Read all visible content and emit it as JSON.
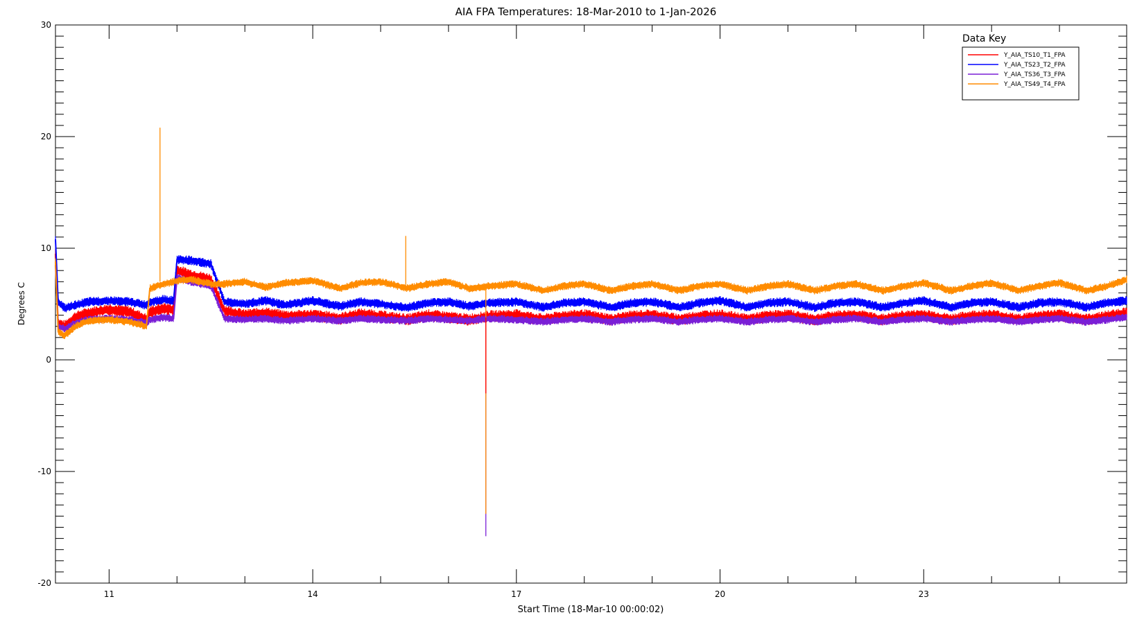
{
  "chart_data": {
    "type": "line",
    "title": "AIA FPA Temperatures: 18-Mar-2010 to 1-Jan-2026",
    "xlabel": "Start Time (18-Mar-10 00:00:02)",
    "ylabel": "Degrees C",
    "xlim": [
      2010.21,
      2025.99
    ],
    "ylim": [
      -20,
      30
    ],
    "x_ticks": [
      {
        "value": 2011,
        "label": "11"
      },
      {
        "value": 2014,
        "label": "14"
      },
      {
        "value": 2017,
        "label": "17"
      },
      {
        "value": 2020,
        "label": "20"
      },
      {
        "value": 2023,
        "label": "23"
      }
    ],
    "x_minor_ticks": [
      2012,
      2013,
      2015,
      2016,
      2018,
      2019,
      2021,
      2022,
      2024,
      2025
    ],
    "y_ticks": [
      -20,
      -10,
      0,
      10,
      20,
      30
    ],
    "y_minor_step": 1,
    "grid": false,
    "legend_title": "Data Key",
    "legend_position": "top-right",
    "series": [
      {
        "name": "Y_AIA_TS10_T1_FPA",
        "color": "#ff0000",
        "x": [
          2010.21,
          2010.25,
          2010.35,
          2010.5,
          2010.7,
          2011.0,
          2011.3,
          2011.55,
          2011.6,
          2011.8,
          2011.95,
          2012.0,
          2012.2,
          2012.5,
          2012.7,
          2013.0,
          2013.3,
          2013.6,
          2014.0,
          2014.4,
          2014.7,
          2015.0,
          2015.4,
          2015.7,
          2016.0,
          2016.3,
          2016.6,
          2017.0,
          2017.4,
          2017.7,
          2018.0,
          2018.4,
          2018.7,
          2019.0,
          2019.4,
          2019.7,
          2020.0,
          2020.4,
          2020.7,
          2021.0,
          2021.4,
          2021.7,
          2022.0,
          2022.4,
          2022.7,
          2023.0,
          2023.4,
          2023.7,
          2024.0,
          2024.4,
          2024.7,
          2025.0,
          2025.4,
          2025.7,
          2025.99
        ],
        "y": [
          9.5,
          3.2,
          3.0,
          3.8,
          4.2,
          4.5,
          4.3,
          3.6,
          4.3,
          4.6,
          4.5,
          8.0,
          7.6,
          7.2,
          4.4,
          4.0,
          4.2,
          3.9,
          4.0,
          3.7,
          4.1,
          3.9,
          3.6,
          4.0,
          3.8,
          3.6,
          3.9,
          4.0,
          3.6,
          3.9,
          4.0,
          3.6,
          3.9,
          4.0,
          3.6,
          3.9,
          4.0,
          3.6,
          3.9,
          4.0,
          3.6,
          3.9,
          4.0,
          3.6,
          3.9,
          4.0,
          3.6,
          3.9,
          4.0,
          3.6,
          3.9,
          4.0,
          3.6,
          3.9,
          4.2
        ]
      },
      {
        "name": "Y_AIA_TS23_T2_FPA",
        "color": "#0000ff",
        "x": [
          2010.21,
          2010.25,
          2010.35,
          2010.5,
          2010.7,
          2011.0,
          2011.3,
          2011.55,
          2011.6,
          2011.8,
          2011.95,
          2012.0,
          2012.2,
          2012.5,
          2012.7,
          2013.0,
          2013.3,
          2013.6,
          2014.0,
          2014.4,
          2014.7,
          2015.0,
          2015.4,
          2015.7,
          2016.0,
          2016.3,
          2016.6,
          2017.0,
          2017.4,
          2017.7,
          2018.0,
          2018.4,
          2018.7,
          2019.0,
          2019.4,
          2019.7,
          2020.0,
          2020.4,
          2020.7,
          2021.0,
          2021.4,
          2021.7,
          2022.0,
          2022.4,
          2022.7,
          2023.0,
          2023.4,
          2023.7,
          2024.0,
          2024.4,
          2024.7,
          2025.0,
          2025.4,
          2025.7,
          2025.99
        ],
        "y": [
          10.8,
          5.2,
          4.6,
          4.9,
          5.2,
          5.3,
          5.2,
          4.9,
          5.2,
          5.4,
          5.3,
          9.0,
          8.9,
          8.6,
          5.2,
          5.0,
          5.3,
          4.9,
          5.3,
          4.8,
          5.2,
          5.0,
          4.7,
          5.1,
          5.2,
          4.8,
          5.1,
          5.2,
          4.7,
          5.1,
          5.2,
          4.7,
          5.1,
          5.2,
          4.7,
          5.1,
          5.3,
          4.7,
          5.1,
          5.2,
          4.7,
          5.1,
          5.2,
          4.7,
          5.1,
          5.3,
          4.7,
          5.1,
          5.2,
          4.7,
          5.1,
          5.2,
          4.7,
          5.1,
          5.3
        ]
      },
      {
        "name": "Y_AIA_TS36_T3_FPA",
        "color": "#7a1fd6",
        "x": [
          2010.21,
          2010.25,
          2010.35,
          2010.5,
          2010.7,
          2011.0,
          2011.3,
          2011.55,
          2011.6,
          2011.8,
          2011.95,
          2012.0,
          2012.2,
          2012.5,
          2012.7,
          2013.0,
          2013.3,
          2013.6,
          2014.0,
          2014.4,
          2014.7,
          2015.0,
          2015.4,
          2015.7,
          2016.0,
          2016.3,
          2016.6,
          2017.0,
          2017.4,
          2017.7,
          2018.0,
          2018.4,
          2018.7,
          2019.0,
          2019.4,
          2019.7,
          2020.0,
          2020.4,
          2020.7,
          2021.0,
          2021.4,
          2021.7,
          2022.0,
          2022.4,
          2022.7,
          2023.0,
          2023.4,
          2023.7,
          2024.0,
          2024.4,
          2024.7,
          2025.0,
          2025.4,
          2025.7,
          2025.99
        ],
        "y": [
          8.5,
          3.0,
          2.8,
          3.3,
          3.6,
          3.7,
          3.6,
          3.3,
          3.6,
          3.8,
          3.7,
          7.4,
          7.0,
          6.6,
          3.7,
          3.6,
          3.7,
          3.5,
          3.7,
          3.5,
          3.7,
          3.6,
          3.5,
          3.7,
          3.6,
          3.5,
          3.7,
          3.6,
          3.4,
          3.6,
          3.7,
          3.4,
          3.6,
          3.7,
          3.4,
          3.6,
          3.7,
          3.4,
          3.6,
          3.7,
          3.4,
          3.6,
          3.7,
          3.4,
          3.6,
          3.7,
          3.4,
          3.6,
          3.7,
          3.4,
          3.6,
          3.7,
          3.4,
          3.6,
          3.8
        ]
      },
      {
        "name": "Y_AIA_TS49_T4_FPA",
        "color": "#ff8c00",
        "x": [
          2010.21,
          2010.25,
          2010.35,
          2010.5,
          2010.7,
          2011.0,
          2011.3,
          2011.55,
          2011.6,
          2011.8,
          2011.95,
          2012.0,
          2012.2,
          2012.5,
          2012.7,
          2013.0,
          2013.3,
          2013.6,
          2014.0,
          2014.4,
          2014.7,
          2015.0,
          2015.4,
          2015.7,
          2016.0,
          2016.3,
          2016.6,
          2017.0,
          2017.4,
          2017.7,
          2018.0,
          2018.4,
          2018.7,
          2019.0,
          2019.4,
          2019.7,
          2020.0,
          2020.4,
          2020.7,
          2021.0,
          2021.4,
          2021.7,
          2022.0,
          2022.4,
          2022.7,
          2023.0,
          2023.4,
          2023.7,
          2024.0,
          2024.4,
          2024.7,
          2025.0,
          2025.4,
          2025.7,
          2025.99
        ],
        "y": [
          8.8,
          2.5,
          2.2,
          3.0,
          3.5,
          3.6,
          3.4,
          3.0,
          6.4,
          6.8,
          7.0,
          7.1,
          7.2,
          6.8,
          6.8,
          7.0,
          6.5,
          6.9,
          7.1,
          6.4,
          6.9,
          7.0,
          6.4,
          6.8,
          7.0,
          6.4,
          6.6,
          6.8,
          6.2,
          6.6,
          6.8,
          6.2,
          6.6,
          6.8,
          6.2,
          6.6,
          6.8,
          6.2,
          6.6,
          6.8,
          6.2,
          6.6,
          6.8,
          6.2,
          6.6,
          6.9,
          6.2,
          6.6,
          6.9,
          6.2,
          6.6,
          6.9,
          6.2,
          6.6,
          7.2
        ]
      }
    ],
    "spikes": [
      {
        "series": "Y_AIA_TS49_T4_FPA",
        "x": 2011.75,
        "y_low": 7.0,
        "y_high": 20.8
      },
      {
        "series": "Y_AIA_TS49_T4_FPA",
        "x": 2015.37,
        "y_low": 6.5,
        "y_high": 11.1
      },
      {
        "series": "Y_AIA_TS36_T3_FPA",
        "x": 2016.55,
        "y_low": 3.6,
        "y_high": -15.8
      },
      {
        "series": "Y_AIA_TS49_T4_FPA",
        "x": 2016.55,
        "y_low": 6.5,
        "y_high": -13.8
      },
      {
        "series": "Y_AIA_TS10_T1_FPA",
        "x": 2016.55,
        "y_low": 3.8,
        "y_high": -3.0
      }
    ]
  }
}
